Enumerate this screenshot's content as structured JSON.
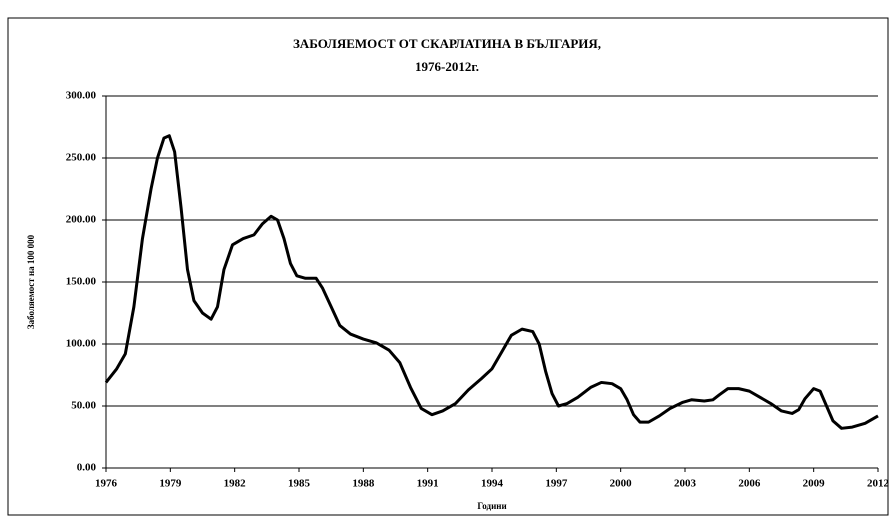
{
  "chart_data": {
    "type": "line",
    "title": [
      "ЗАБОЛЯЕМОСТ ОТ СКАРЛАТИНА В БЪЛГАРИЯ,",
      "1976-2012г."
    ],
    "x_label": "Години",
    "y_label": "Заболяемост на 100 000",
    "x": [
      1976.0,
      1976.5,
      1976.9,
      1977.3,
      1977.7,
      1978.1,
      1978.4,
      1978.7,
      1978.95,
      1979.2,
      1979.5,
      1979.8,
      1980.1,
      1980.5,
      1980.9,
      1981.2,
      1981.5,
      1981.9,
      1982.4,
      1982.9,
      1983.3,
      1983.7,
      1984.0,
      1984.3,
      1984.6,
      1984.9,
      1985.3,
      1985.8,
      1986.1,
      1986.5,
      1986.9,
      1987.4,
      1988.0,
      1988.6,
      1989.2,
      1989.7,
      1990.2,
      1990.7,
      1991.2,
      1991.7,
      1992.3,
      1992.9,
      1993.5,
      1994.0,
      1994.5,
      1994.9,
      1995.4,
      1995.9,
      1996.2,
      1996.5,
      1996.8,
      1997.1,
      1997.5,
      1998.0,
      1998.6,
      1999.1,
      1999.6,
      2000.0,
      2000.3,
      2000.6,
      2000.9,
      2001.3,
      2001.8,
      2002.3,
      2002.9,
      2003.3,
      2003.9,
      2004.3,
      2004.6,
      2005.0,
      2005.5,
      2006.0,
      2006.5,
      2007.0,
      2007.5,
      2008.0,
      2008.3,
      2008.6,
      2009.0,
      2009.3,
      2009.6,
      2009.9,
      2010.3,
      2010.8,
      2011.4,
      2012.0
    ],
    "series": [
      {
        "name": "Заболяемост",
        "color": "#000000",
        "values": [
          69,
          80,
          92,
          130,
          185,
          225,
          250,
          266,
          268,
          255,
          210,
          160,
          135,
          125,
          120,
          130,
          160,
          180,
          185,
          188,
          197,
          203,
          200,
          185,
          165,
          155,
          153,
          153,
          145,
          130,
          115,
          108,
          104,
          101,
          95,
          85,
          65,
          48,
          43,
          46,
          52,
          63,
          72,
          80,
          95,
          107,
          112,
          110,
          100,
          78,
          60,
          50,
          52,
          57,
          65,
          69,
          68,
          64,
          55,
          43,
          37,
          37,
          42,
          48,
          53,
          55,
          54,
          55,
          59,
          64,
          64,
          62,
          57,
          52,
          46,
          44,
          47,
          56,
          64,
          62,
          50,
          38,
          32,
          33,
          36,
          42
        ]
      }
    ],
    "xlim": [
      1976,
      2012
    ],
    "xticks": [
      1976,
      1979,
      1982,
      1985,
      1988,
      1991,
      1994,
      1997,
      2000,
      2003,
      2006,
      2009,
      2012
    ],
    "ylim": [
      0,
      300
    ],
    "yticks": [
      {
        "value": 0,
        "label": "0.00"
      },
      {
        "value": 50,
        "label": "50.00"
      },
      {
        "value": 100,
        "label": "100.00"
      },
      {
        "value": 150,
        "label": "150.00"
      },
      {
        "value": 200,
        "label": "200.00"
      },
      {
        "value": 250,
        "label": "250.00"
      },
      {
        "value": 300,
        "label": "300.00"
      }
    ],
    "grid": true
  }
}
